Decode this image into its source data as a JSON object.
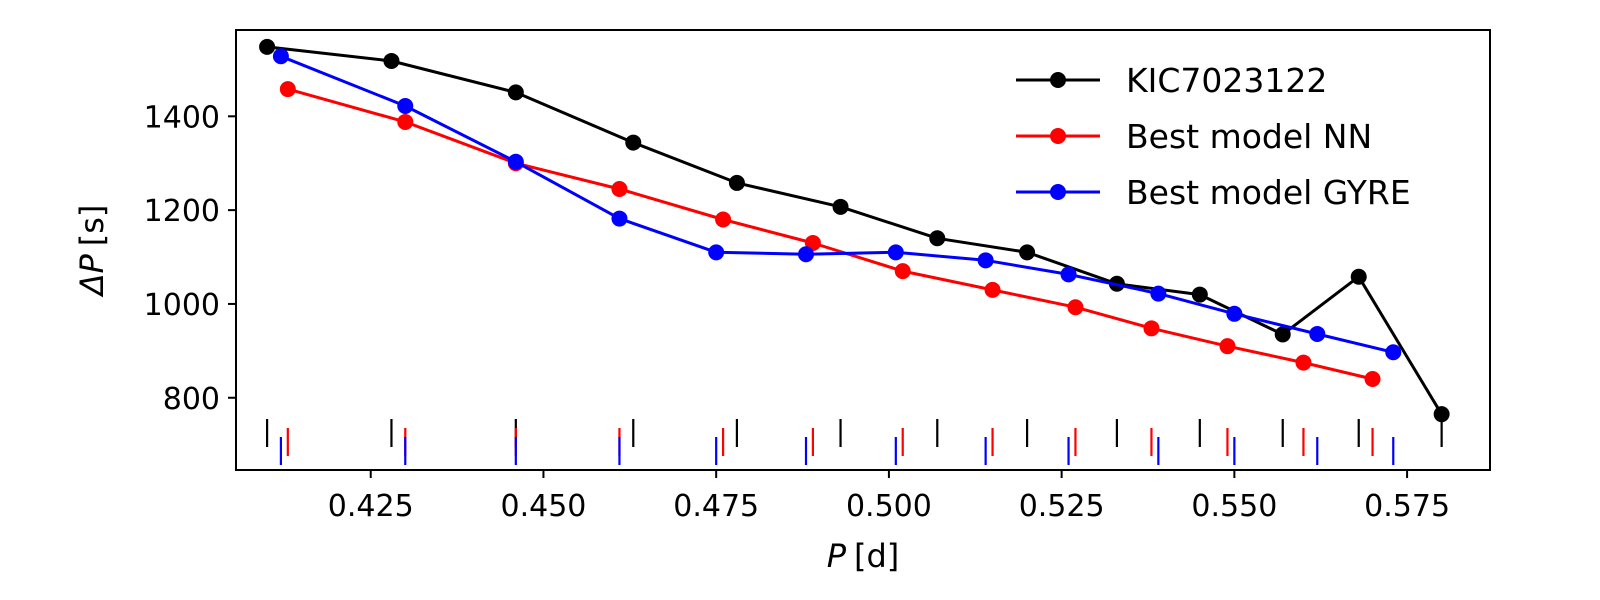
{
  "chart_data": {
    "type": "line",
    "title": "",
    "xlabel": {
      "symbol": "P",
      "unit": "[d]"
    },
    "ylabel": {
      "symbol": "ΔP",
      "unit": "[s]"
    },
    "xlim": [
      0.4055,
      0.587
    ],
    "ylim": [
      646,
      1584
    ],
    "xticks": [
      0.425,
      0.45,
      0.475,
      0.5,
      0.525,
      0.55,
      0.575
    ],
    "xtick_labels": [
      "0.425",
      "0.450",
      "0.475",
      "0.500",
      "0.525",
      "0.550",
      "0.575"
    ],
    "yticks": [
      800,
      1000,
      1200,
      1400
    ],
    "ytick_labels": [
      "800",
      "1000",
      "1200",
      "1400"
    ],
    "legend_position": "top-right",
    "series": [
      {
        "name": "KIC7023122",
        "color": "#000000",
        "x": [
          0.41,
          0.428,
          0.446,
          0.463,
          0.478,
          0.493,
          0.507,
          0.52,
          0.533,
          0.545,
          0.557,
          0.568,
          0.58
        ],
        "y": [
          1548,
          1518,
          1451,
          1344,
          1258,
          1207,
          1140,
          1110,
          1043,
          1020,
          935,
          1058,
          765
        ],
        "period_marks": [
          0.41,
          0.428,
          0.446,
          0.463,
          0.478,
          0.493,
          0.507,
          0.52,
          0.533,
          0.545,
          0.557,
          0.568,
          0.58
        ]
      },
      {
        "name": "Best model NN",
        "color": "#ff0000",
        "x": [
          0.413,
          0.43,
          0.446,
          0.461,
          0.476,
          0.489,
          0.502,
          0.515,
          0.527,
          0.538,
          0.549,
          0.56,
          0.57
        ],
        "y": [
          1458,
          1388,
          1300,
          1245,
          1180,
          1130,
          1070,
          1030,
          993,
          948,
          910,
          875,
          840
        ],
        "period_marks": [
          0.413,
          0.43,
          0.446,
          0.461,
          0.476,
          0.489,
          0.502,
          0.515,
          0.527,
          0.538,
          0.549,
          0.56,
          0.57
        ]
      },
      {
        "name": "Best model GYRE",
        "color": "#0000ff",
        "x": [
          0.412,
          0.43,
          0.446,
          0.461,
          0.475,
          0.488,
          0.501,
          0.514,
          0.526,
          0.539,
          0.55,
          0.562,
          0.573
        ],
        "y": [
          1528,
          1422,
          1303,
          1182,
          1110,
          1106,
          1110,
          1093,
          1063,
          1022,
          979,
          936,
          897
        ],
        "period_marks": [
          0.412,
          0.43,
          0.446,
          0.461,
          0.475,
          0.488,
          0.501,
          0.514,
          0.526,
          0.539,
          0.55,
          0.562,
          0.573
        ]
      }
    ]
  }
}
